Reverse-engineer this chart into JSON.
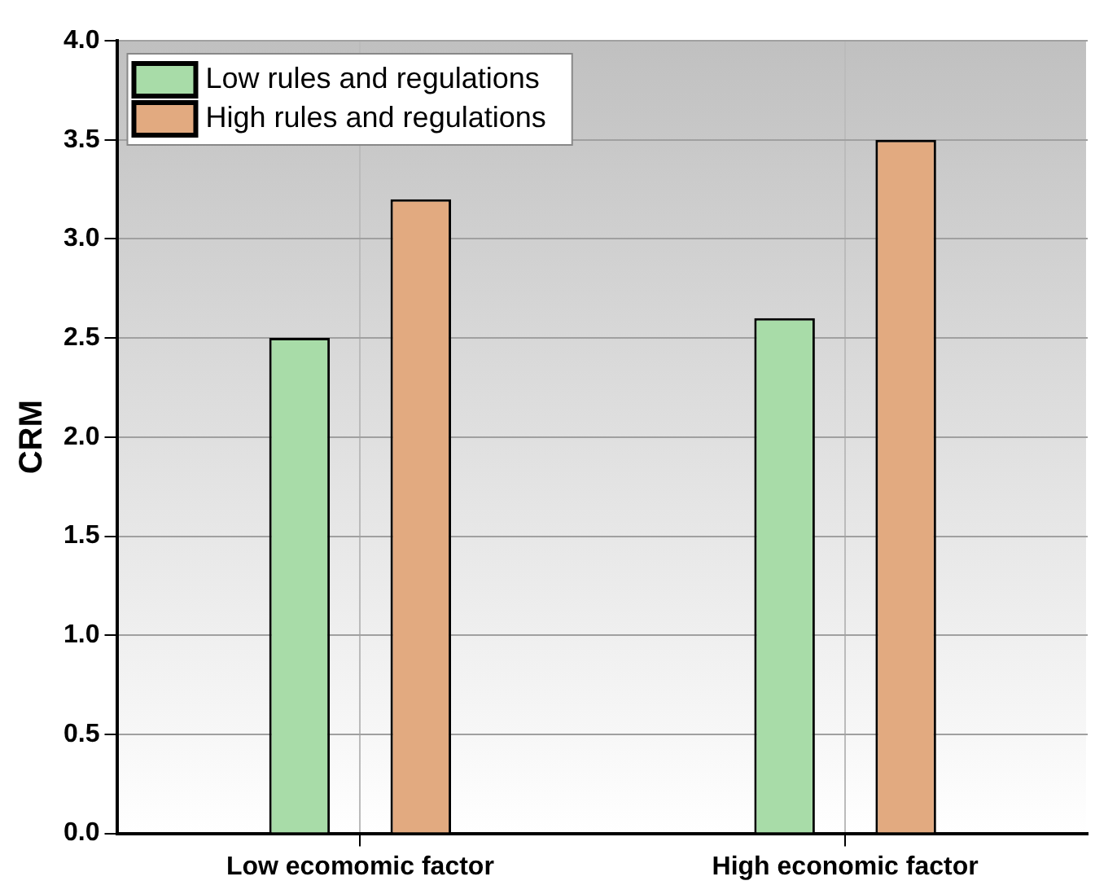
{
  "chart_data": {
    "type": "bar",
    "ylabel": "CRM",
    "categories": [
      "Low ecomomic factor",
      "High economic factor"
    ],
    "series": [
      {
        "name": "Low rules and regulations",
        "color": "#a8dca8",
        "values": [
          2.5,
          2.6
        ]
      },
      {
        "name": "High rules and regulations",
        "color": "#e2aa80",
        "values": [
          3.2,
          3.5
        ]
      }
    ],
    "ylim": [
      0,
      4
    ],
    "yticks": [
      {
        "value": 0,
        "label": "0.0"
      },
      {
        "value": 0.5,
        "label": "0.5"
      },
      {
        "value": 1,
        "label": "1.0"
      },
      {
        "value": 1.5,
        "label": "1.5"
      },
      {
        "value": 2,
        "label": "2.0"
      },
      {
        "value": 2.5,
        "label": "2.5"
      },
      {
        "value": 3,
        "label": "3.0"
      },
      {
        "value": 3.5,
        "label": "3.5"
      },
      {
        "value": 4,
        "label": "4.0"
      }
    ],
    "grid": true,
    "legend": "top left"
  }
}
